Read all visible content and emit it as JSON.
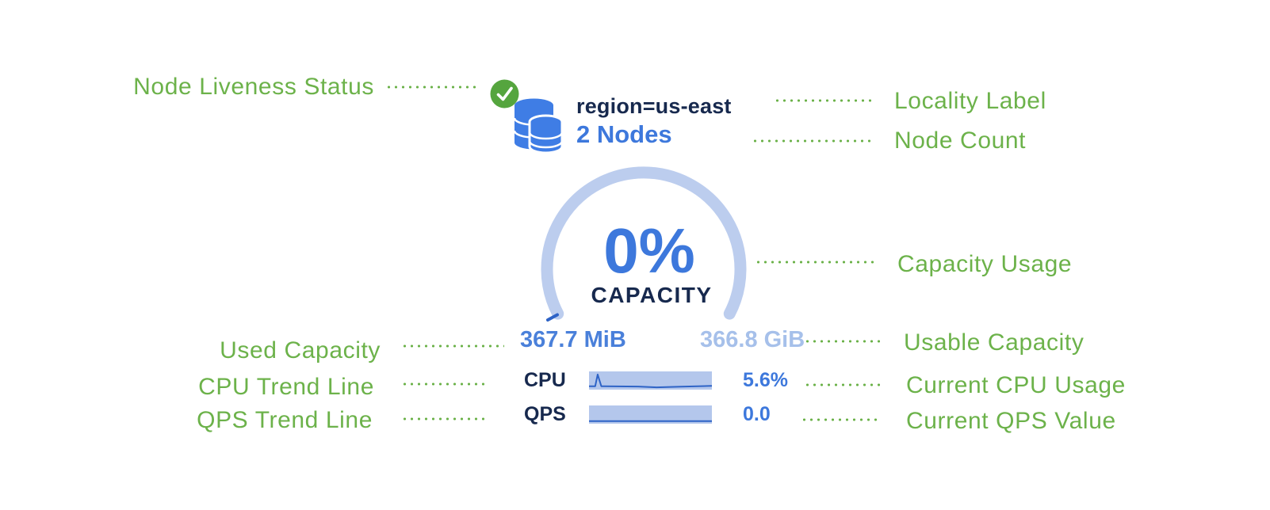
{
  "figure": {
    "title_hidden": "",
    "green_hex": "#6cb24a"
  },
  "annotations": {
    "left": [
      {
        "label": "Node Liveness Status"
      },
      {
        "label": "Used Capacity"
      },
      {
        "label": "CPU Trend Line"
      },
      {
        "label": "QPS Trend Line"
      }
    ],
    "right": [
      {
        "label": "Locality Label"
      },
      {
        "label": "Node Count"
      },
      {
        "label": "Capacity Usage"
      },
      {
        "label": "Usable Capacity"
      },
      {
        "label": "Current CPU Usage"
      },
      {
        "label": "Current QPS Value"
      }
    ]
  },
  "node_card": {
    "liveness_icon": "check-circle-icon",
    "node_icon": "database-stack-icon",
    "locality_label": "region=us-east",
    "node_count": "2 Nodes",
    "capacity": {
      "percent": "0%",
      "caption": "CAPACITY",
      "used": "367.7 MiB",
      "usable": "366.8 GiB"
    },
    "metrics": [
      {
        "label": "CPU",
        "value": "5.6%",
        "spark": [
          [
            0,
            12
          ],
          [
            5,
            12
          ],
          [
            7,
            90
          ],
          [
            10,
            12
          ],
          [
            40,
            10
          ],
          [
            55,
            5
          ],
          [
            75,
            9
          ],
          [
            100,
            14
          ]
        ]
      },
      {
        "label": "QPS",
        "value": "0.0",
        "spark": [
          [
            0,
            7
          ],
          [
            100,
            7
          ]
        ]
      }
    ]
  },
  "chart_data": [
    {
      "type": "line",
      "title": "CPU sparkline",
      "x": [
        0,
        5,
        7,
        10,
        40,
        55,
        75,
        100
      ],
      "values": [
        0.12,
        0.12,
        0.9,
        0.12,
        0.1,
        0.05,
        0.09,
        0.14
      ],
      "ylabel": "CPU",
      "current_value": "5.6%",
      "legend_position": "none",
      "grid": false
    },
    {
      "type": "line",
      "title": "QPS sparkline",
      "x": [
        0,
        100
      ],
      "values": [
        0,
        0
      ],
      "ylabel": "QPS",
      "current_value": "0.0",
      "legend_position": "none",
      "grid": false
    },
    {
      "type": "gauge",
      "title": "CAPACITY",
      "percent": 0,
      "used": "367.7 MiB",
      "usable": "366.8 GiB"
    }
  ],
  "colors": {
    "green": "#6cb24a",
    "check_green": "#55a53e",
    "navy": "#17294e",
    "accent_blue": "#3d78dc",
    "mid_blue": "#4a80da",
    "light_blue": "#a6c0ea",
    "arc_blue": "#bccdee",
    "db_blue": "#3f7de5",
    "spark_fill": "#b4c7ec",
    "spark_line": "#2e63c6"
  }
}
